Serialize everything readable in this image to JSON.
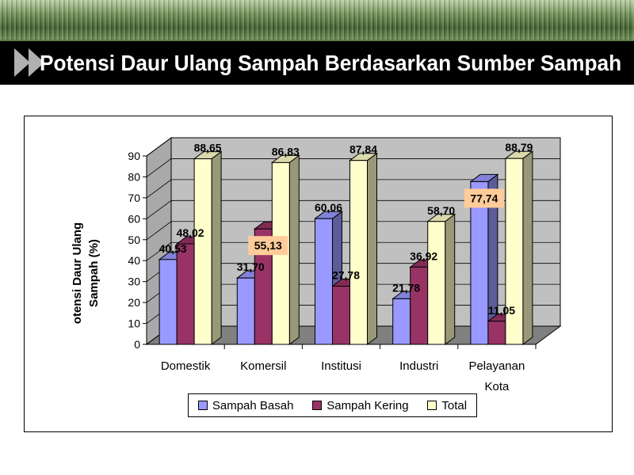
{
  "slide": {
    "title": "Potensi Daur Ulang Sampah Berdasarkan Sumber Sampah"
  },
  "colors": {
    "title_bar_bg": "#000000",
    "top_band": "#5f7f48",
    "sampah_basah": "#9999ff",
    "sampah_kering": "#993366",
    "total": "#ffffcc",
    "walls": "#c0c0c0",
    "floor": "#808080",
    "highlight_label_bg": "#ffcc99"
  },
  "chart_data": {
    "type": "bar",
    "style": "3d-clustered-column",
    "ylabel_lines": [
      "otensi Daur Ulang",
      "Sampah (%)"
    ],
    "categories": [
      [
        "Domestik"
      ],
      [
        "Komersil"
      ],
      [
        "Institusi"
      ],
      [
        "Industri"
      ],
      [
        "Pelayanan",
        "Kota"
      ]
    ],
    "series": [
      {
        "name": "Sampah Basah",
        "values": [
          40.53,
          31.7,
          60.06,
          21.78,
          77.74
        ],
        "labels": [
          "40,53",
          "31,70",
          "60,06",
          "21,78",
          "77,74"
        ]
      },
      {
        "name": "Sampah Kering",
        "values": [
          48.02,
          55.13,
          27.78,
          36.92,
          11.05
        ],
        "labels": [
          "48,02",
          "55,13",
          "27,78",
          "36,92",
          "11,05"
        ]
      },
      {
        "name": "Total",
        "values": [
          88.65,
          86.83,
          87.84,
          58.7,
          88.79
        ],
        "labels": [
          "88,65",
          "86,83",
          "87,84",
          "58,70",
          "88,79"
        ]
      }
    ],
    "highlighted_labels": [
      {
        "series": "Sampah Kering",
        "category": "Komersil"
      },
      {
        "series": "Sampah Basah",
        "category": "Pelayanan Kota"
      }
    ],
    "ylim": [
      0,
      90
    ],
    "yticks": [
      "0",
      "10",
      "20",
      "30",
      "40",
      "50",
      "60",
      "70",
      "80",
      "90"
    ],
    "grid": true,
    "legend": "bottom"
  }
}
